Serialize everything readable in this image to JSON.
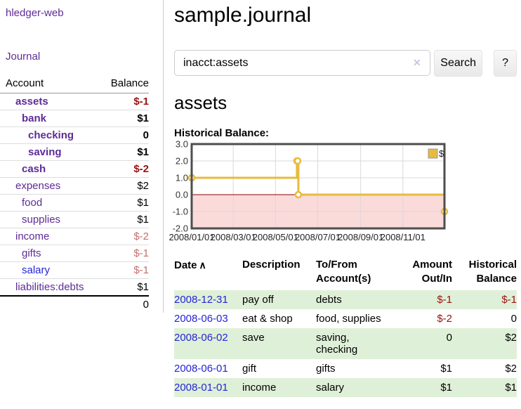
{
  "colors": {
    "link-purple": "#5e2b97",
    "link-blue": "#2424d8",
    "neg-strong": "#991111",
    "neg-light": "#c56f6f",
    "row-green": "#dff0d8",
    "chart-line": "#e8ba3e",
    "chart-negative-bg": "#fbdada",
    "chart-zero-line": "#8b0000",
    "chart-border": "#4d4d4d"
  },
  "app": {
    "title": "hledger-web"
  },
  "sidebar": {
    "journal_link": "Journal",
    "accounts_table": {
      "headers": {
        "account": "Account",
        "balance": "Balance"
      },
      "rows": [
        {
          "name": "assets",
          "indent": 0,
          "bold": true,
          "balance": "$-1",
          "balance_style": "neg-strong"
        },
        {
          "name": "bank",
          "indent": 1,
          "bold": true,
          "balance": "$1",
          "balance_style": "pos-strong"
        },
        {
          "name": "checking",
          "indent": 2,
          "bold": true,
          "balance": "0",
          "balance_style": "pos-strong"
        },
        {
          "name": "saving",
          "indent": 2,
          "bold": true,
          "balance": "$1",
          "balance_style": "pos-strong"
        },
        {
          "name": "cash",
          "indent": 1,
          "bold": true,
          "balance": "$-2",
          "balance_style": "neg-strong"
        },
        {
          "name": "expenses",
          "indent": 0,
          "bold": false,
          "balance": "$2",
          "balance_style": "pos"
        },
        {
          "name": "food",
          "indent": 1,
          "bold": false,
          "balance": "$1",
          "balance_style": "pos"
        },
        {
          "name": "supplies",
          "indent": 1,
          "bold": false,
          "balance": "$1",
          "balance_style": "pos"
        },
        {
          "name": "income",
          "indent": 0,
          "bold": false,
          "balance": "$-2",
          "balance_style": "neg"
        },
        {
          "name": "gifts",
          "indent": 1,
          "bold": false,
          "balance": "$-1",
          "balance_style": "neg"
        },
        {
          "name": "salary",
          "indent": 1,
          "bold": false,
          "blue": true,
          "balance": "$-1",
          "balance_style": "neg"
        },
        {
          "name": "liabilities:debts",
          "indent": 0,
          "bold": false,
          "balance": "$1",
          "balance_style": "pos"
        }
      ],
      "total": "0"
    }
  },
  "main": {
    "title": "sample.journal",
    "search": {
      "value": "inacct:assets",
      "clear_icon": "✕",
      "button_label": "Search",
      "help_label": "?"
    },
    "account_heading": "assets",
    "chart_label": "Historical Balance:"
  },
  "chart_data": {
    "type": "line",
    "title": "Historical Balance:",
    "x_domain": [
      "2008-01-01",
      "2008-12-31"
    ],
    "ylim": [
      -2,
      3
    ],
    "y_ticks": [
      "3.0",
      "2.0",
      "1.0",
      "0.0",
      "-1.0",
      "-2.0"
    ],
    "x_tick_labels": [
      "2008/01/01",
      "2008/03/01",
      "2008/05/01",
      "2008/07/01",
      "2008/09/01",
      "2008/11/01"
    ],
    "x_tick_dates": [
      "2008-01-01",
      "2008-03-01",
      "2008-05-01",
      "2008-07-01",
      "2008-09-01",
      "2008-11-01"
    ],
    "grid": true,
    "legend": {
      "label": "$",
      "position": "top-right"
    },
    "negative_region_shaded": true,
    "series": [
      {
        "name": "$",
        "type": "step-line",
        "points": [
          [
            "2008-01-01",
            1
          ],
          [
            "2008-06-01",
            2
          ],
          [
            "2008-06-02",
            2
          ],
          [
            "2008-06-03",
            0
          ],
          [
            "2008-12-31",
            -1
          ]
        ]
      }
    ]
  },
  "register_table": {
    "headers": [
      {
        "label": "Date",
        "sort_icon": "∧",
        "align": "left"
      },
      {
        "label": "Description",
        "align": "left"
      },
      {
        "label": "To/From Account(s)",
        "align": "left"
      },
      {
        "label": "Amount Out/In",
        "align": "right"
      },
      {
        "label": "Historical Balance",
        "align": "right"
      }
    ],
    "rows": [
      {
        "date": "2008-12-31",
        "description": "pay off",
        "accounts": "debts",
        "amount": "$-1",
        "amount_style": "neg",
        "balance": "$-1",
        "balance_style": "neg"
      },
      {
        "date": "2008-06-03",
        "description": "eat & shop",
        "accounts": "food, supplies",
        "amount": "$-2",
        "amount_style": "neg",
        "balance": "0",
        "balance_style": "pos"
      },
      {
        "date": "2008-06-02",
        "description": "save",
        "accounts": "saving, checking",
        "amount": "0",
        "amount_style": "pos",
        "balance": "$2",
        "balance_style": "pos"
      },
      {
        "date": "2008-06-01",
        "description": "gift",
        "accounts": "gifts",
        "amount": "$1",
        "amount_style": "pos",
        "balance": "$2",
        "balance_style": "pos"
      },
      {
        "date": "2008-01-01",
        "description": "income",
        "accounts": "salary",
        "amount": "$1",
        "amount_style": "pos",
        "balance": "$1",
        "balance_style": "pos"
      }
    ]
  }
}
